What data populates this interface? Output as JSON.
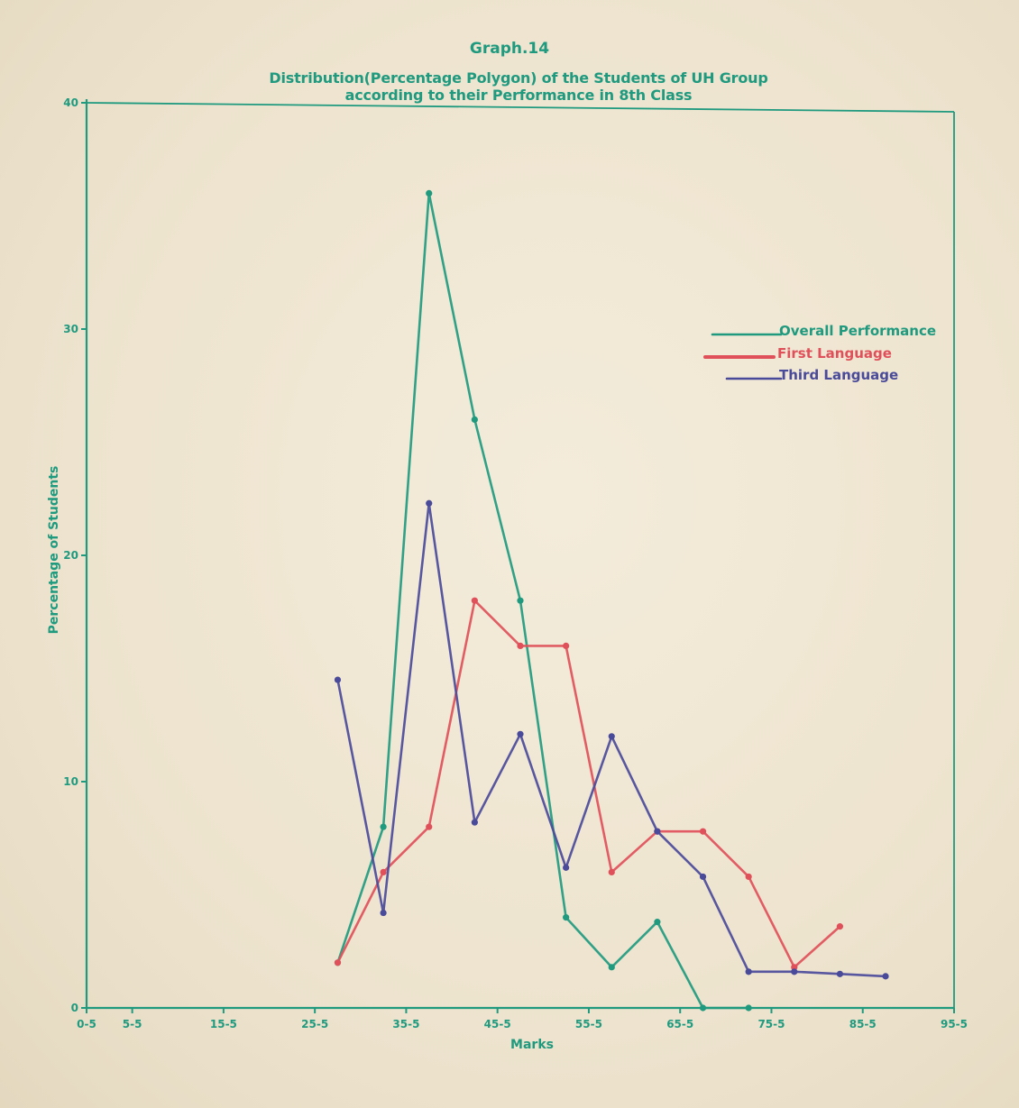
{
  "header": {
    "graph_number": "Graph.14",
    "title_line_1": "Distribution(Percentage Polygon) of the Students of UH Group",
    "title_line_2": "according to their Performance in 8th Class"
  },
  "colors": {
    "axis": "#1f9a7f",
    "overall": "#1f9a7f",
    "first_language": "#e0505a",
    "third_language": "#4a4a9a"
  },
  "chart_data": {
    "type": "line",
    "title": "Distribution(Percentage Polygon) of the Students of UH Group according to their Performance in 8th Class",
    "xlabel": "Marks",
    "ylabel": "Percentage of Students",
    "xlim": [
      0.5,
      95.5
    ],
    "ylim": [
      0,
      40
    ],
    "x_ticks": [
      0.5,
      5.5,
      15.5,
      25.5,
      35.5,
      45.5,
      55.5,
      65.5,
      75.5,
      85.5,
      95.5
    ],
    "x_tick_labels": [
      "0-5",
      "5-5",
      "15-5",
      "25-5",
      "35-5",
      "45-5",
      "55-5",
      "65-5",
      "75-5",
      "85-5",
      "95-5"
    ],
    "y_ticks": [
      0,
      10,
      20,
      30,
      40
    ],
    "y_tick_labels": [
      "0",
      "10",
      "20",
      "30",
      "40"
    ],
    "grid": false,
    "legend_position": "top-right",
    "series": [
      {
        "name": "Overall Performance",
        "color": "#1f9a7f",
        "points": [
          [
            28,
            2
          ],
          [
            33,
            8
          ],
          [
            38,
            36
          ],
          [
            43,
            26
          ],
          [
            48,
            18
          ],
          [
            53,
            4
          ],
          [
            58,
            1.8
          ],
          [
            63,
            3.8
          ],
          [
            68,
            0
          ],
          [
            73,
            0
          ]
        ]
      },
      {
        "name": "First Language",
        "color": "#e0505a",
        "points": [
          [
            28,
            2
          ],
          [
            33,
            6
          ],
          [
            38,
            8
          ],
          [
            43,
            18
          ],
          [
            48,
            16
          ],
          [
            53,
            16
          ],
          [
            58,
            6
          ],
          [
            63,
            7.8
          ],
          [
            68,
            7.8
          ],
          [
            73,
            5.8
          ],
          [
            78,
            1.8
          ],
          [
            83,
            3.6
          ]
        ]
      },
      {
        "name": "Third Language",
        "color": "#4a4a9a",
        "points": [
          [
            28,
            14.5
          ],
          [
            33,
            4.2
          ],
          [
            38,
            22.3
          ],
          [
            43,
            8.2
          ],
          [
            48,
            12.1
          ],
          [
            53,
            6.2
          ],
          [
            58,
            12
          ],
          [
            63,
            7.8
          ],
          [
            68,
            5.8
          ],
          [
            73,
            1.6
          ],
          [
            78,
            1.6
          ],
          [
            83,
            1.5
          ],
          [
            88,
            1.4
          ]
        ]
      }
    ]
  }
}
